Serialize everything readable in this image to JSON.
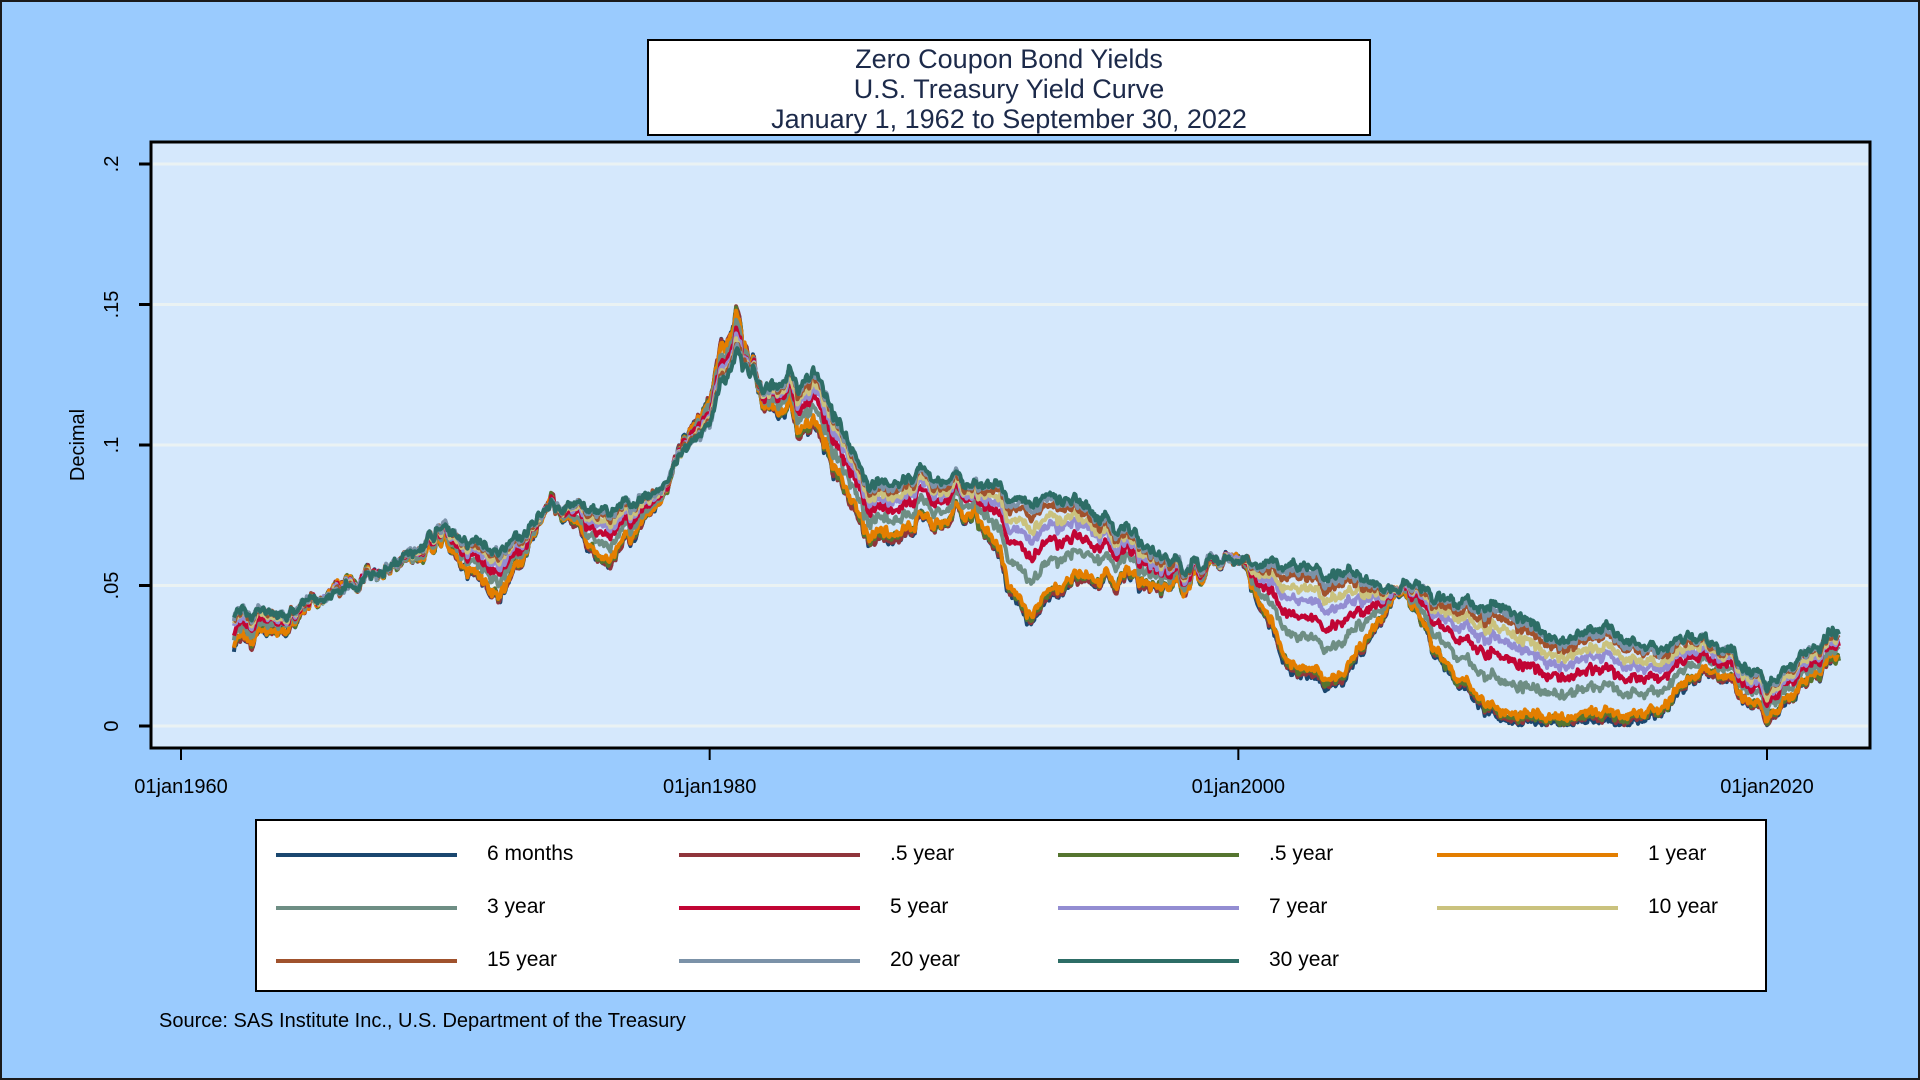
{
  "chart_data": {
    "type": "line",
    "title": [
      "Zero Coupon Bond Yields",
      "U.S. Treasury Yield Curve",
      "January 1, 1962 to September 30, 2022"
    ],
    "xlabel": "",
    "ylabel": "Decimal",
    "ylim": [
      0,
      0.2
    ],
    "yticks": [
      0,
      0.05,
      0.1,
      0.15,
      0.2
    ],
    "ytick_labels": [
      "0",
      ".05",
      ".1",
      ".15",
      ".2"
    ],
    "xlim": [
      1958.5,
      2024.5
    ],
    "xticks": [
      1960,
      1980,
      2000,
      2020
    ],
    "xtick_labels": [
      "01jan1960",
      "01jan1980",
      "01jan2000",
      "01jan2020"
    ],
    "grid": true,
    "legend_placement": "bottom",
    "x": [
      1962,
      1964,
      1966,
      1968,
      1970,
      1972,
      1974,
      1976,
      1978,
      1980,
      1981,
      1982,
      1984,
      1986,
      1988,
      1990,
      1992,
      1994,
      1996,
      1998,
      2000,
      2002,
      2004,
      2006,
      2008,
      2010,
      2012,
      2014,
      2016,
      2018,
      2020,
      2022.75
    ],
    "series": [
      {
        "name": "6 months",
        "color": "#1a476f",
        "values": [
          0.029,
          0.036,
          0.049,
          0.055,
          0.065,
          0.045,
          0.08,
          0.055,
          0.08,
          0.12,
          0.15,
          0.115,
          0.105,
          0.065,
          0.072,
          0.078,
          0.037,
          0.05,
          0.052,
          0.05,
          0.062,
          0.017,
          0.015,
          0.05,
          0.018,
          0.002,
          0.001,
          0.001,
          0.005,
          0.021,
          0.002,
          0.025
        ]
      },
      {
        "name": ".5 year",
        "color": "#90353b",
        "values": [
          0.029,
          0.036,
          0.049,
          0.055,
          0.065,
          0.045,
          0.08,
          0.055,
          0.08,
          0.12,
          0.15,
          0.115,
          0.105,
          0.065,
          0.072,
          0.078,
          0.038,
          0.05,
          0.052,
          0.05,
          0.062,
          0.018,
          0.016,
          0.05,
          0.019,
          0.003,
          0.002,
          0.002,
          0.006,
          0.021,
          0.002,
          0.025
        ]
      },
      {
        "name": ".5 year",
        "color": "#55752f",
        "values": [
          0.03,
          0.036,
          0.049,
          0.055,
          0.065,
          0.046,
          0.08,
          0.056,
          0.08,
          0.119,
          0.149,
          0.115,
          0.106,
          0.066,
          0.073,
          0.078,
          0.039,
          0.051,
          0.053,
          0.05,
          0.062,
          0.019,
          0.017,
          0.05,
          0.019,
          0.004,
          0.002,
          0.003,
          0.006,
          0.022,
          0.003,
          0.025
        ]
      },
      {
        "name": "1 year",
        "color": "#e37e00",
        "values": [
          0.03,
          0.036,
          0.049,
          0.055,
          0.065,
          0.046,
          0.08,
          0.057,
          0.08,
          0.119,
          0.149,
          0.115,
          0.107,
          0.067,
          0.073,
          0.079,
          0.04,
          0.052,
          0.053,
          0.05,
          0.062,
          0.02,
          0.018,
          0.05,
          0.02,
          0.005,
          0.003,
          0.004,
          0.007,
          0.022,
          0.003,
          0.026
        ]
      },
      {
        "name": "3 year",
        "color": "#6e8e84",
        "values": [
          0.033,
          0.038,
          0.048,
          0.055,
          0.067,
          0.051,
          0.079,
          0.062,
          0.081,
          0.117,
          0.145,
          0.117,
          0.112,
          0.072,
          0.078,
          0.082,
          0.052,
          0.06,
          0.058,
          0.052,
          0.061,
          0.031,
          0.029,
          0.05,
          0.027,
          0.016,
          0.011,
          0.013,
          0.013,
          0.025,
          0.007,
          0.028
        ]
      },
      {
        "name": "5 year",
        "color": "#c10534",
        "values": [
          0.035,
          0.039,
          0.048,
          0.056,
          0.068,
          0.054,
          0.079,
          0.066,
          0.082,
          0.115,
          0.142,
          0.118,
          0.116,
          0.076,
          0.082,
          0.084,
          0.061,
          0.065,
          0.061,
          0.053,
          0.061,
          0.038,
          0.036,
          0.05,
          0.033,
          0.025,
          0.017,
          0.019,
          0.018,
          0.026,
          0.009,
          0.03
        ]
      },
      {
        "name": "7 year",
        "color": "#938dd2",
        "values": [
          0.037,
          0.04,
          0.048,
          0.056,
          0.069,
          0.057,
          0.079,
          0.069,
          0.083,
          0.113,
          0.14,
          0.119,
          0.119,
          0.079,
          0.085,
          0.085,
          0.067,
          0.07,
          0.063,
          0.054,
          0.061,
          0.044,
          0.042,
          0.05,
          0.037,
          0.031,
          0.021,
          0.024,
          0.021,
          0.028,
          0.011,
          0.031
        ]
      },
      {
        "name": "10 year",
        "color": "#cac27e",
        "values": [
          0.038,
          0.04,
          0.047,
          0.056,
          0.069,
          0.059,
          0.078,
          0.071,
          0.083,
          0.112,
          0.138,
          0.119,
          0.121,
          0.081,
          0.086,
          0.086,
          0.071,
          0.072,
          0.065,
          0.055,
          0.06,
          0.048,
          0.046,
          0.05,
          0.04,
          0.035,
          0.024,
          0.027,
          0.023,
          0.029,
          0.012,
          0.032
        ]
      },
      {
        "name": "15 year",
        "color": "#a0522d",
        "values": [
          0.039,
          0.041,
          0.047,
          0.056,
          0.07,
          0.06,
          0.078,
          0.073,
          0.084,
          0.111,
          0.137,
          0.12,
          0.123,
          0.083,
          0.088,
          0.087,
          0.076,
          0.075,
          0.066,
          0.055,
          0.06,
          0.052,
          0.05,
          0.05,
          0.042,
          0.039,
          0.027,
          0.031,
          0.026,
          0.03,
          0.014,
          0.033
        ]
      },
      {
        "name": "20 year",
        "color": "#7b92a8",
        "values": [
          0.04,
          0.041,
          0.047,
          0.056,
          0.07,
          0.061,
          0.078,
          0.074,
          0.084,
          0.11,
          0.136,
          0.12,
          0.124,
          0.084,
          0.089,
          0.088,
          0.078,
          0.077,
          0.067,
          0.056,
          0.06,
          0.054,
          0.052,
          0.05,
          0.044,
          0.041,
          0.029,
          0.032,
          0.027,
          0.031,
          0.014,
          0.034
        ]
      },
      {
        "name": "30 year",
        "color": "#2d6d66",
        "values": [
          0.04,
          0.041,
          0.047,
          0.056,
          0.07,
          0.062,
          0.078,
          0.075,
          0.084,
          0.11,
          0.135,
          0.12,
          0.125,
          0.085,
          0.09,
          0.088,
          0.08,
          0.078,
          0.068,
          0.056,
          0.06,
          0.056,
          0.054,
          0.05,
          0.045,
          0.043,
          0.03,
          0.034,
          0.028,
          0.031,
          0.015,
          0.034
        ]
      }
    ],
    "source": "Source: SAS Institute Inc., U.S. Department of the Treasury"
  },
  "colors": {
    "background": "#9acbfe",
    "plot_background": "#d5e8fc",
    "grid": "#eaf2f3"
  }
}
